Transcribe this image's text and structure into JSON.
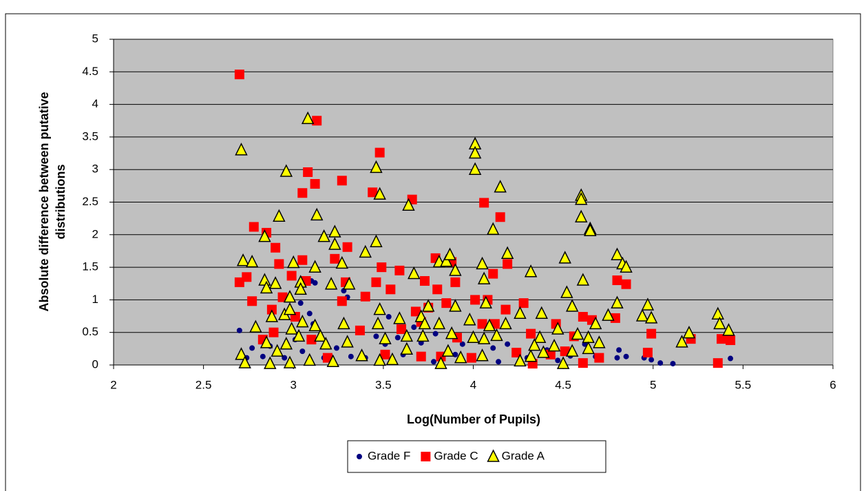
{
  "chart_data": {
    "type": "scatter",
    "xlabel": "Log(Number of Pupils)",
    "ylabel": [
      "Absolute difference between putative",
      "distributions"
    ],
    "xlim": [
      2,
      6
    ],
    "xticks": [
      2,
      2.5,
      3,
      3.5,
      4,
      4.5,
      5,
      5.5,
      6
    ],
    "ylim": [
      0,
      5
    ],
    "yticks": [
      0,
      0.5,
      1,
      1.5,
      2,
      2.5,
      3,
      3.5,
      4,
      4.5,
      5
    ],
    "grid": true,
    "legend": "bottom",
    "background": "#c0c0c0",
    "series": [
      {
        "name": "Grade F",
        "color": "#000080",
        "marker": "circle",
        "x": [
          2.7,
          2.74,
          2.77,
          2.83,
          2.87,
          2.95,
          3.04,
          3.09,
          3.1,
          3.12,
          3.11,
          3.01,
          3.05,
          3.17,
          3.24,
          3.28,
          3.3,
          3.32,
          3.4,
          3.46,
          3.51,
          3.53,
          3.58,
          3.61,
          3.67,
          3.71,
          3.78,
          3.79,
          3.9,
          3.94,
          4.05,
          4.11,
          4.14,
          4.19,
          4.3,
          4.41,
          4.47,
          4.54,
          4.62,
          4.68,
          4.8,
          4.81,
          4.85,
          4.95,
          4.99,
          5.04,
          5.11,
          5.43
        ],
        "values": [
          0.53,
          0.11,
          0.26,
          0.13,
          0.29,
          0.11,
          0.95,
          0.79,
          1.29,
          1.26,
          0.63,
          0.39,
          0.21,
          0.11,
          0.26,
          1.14,
          1.04,
          0.13,
          0.11,
          0.44,
          0.32,
          0.74,
          0.42,
          0.16,
          0.58,
          0.34,
          0.05,
          0.48,
          0.16,
          0.32,
          0.11,
          0.26,
          0.05,
          0.32,
          0.11,
          0.23,
          0.07,
          0.14,
          0.32,
          0.13,
          0.11,
          0.23,
          0.13,
          0.11,
          0.08,
          0.03,
          0.02,
          0.1
        ]
      },
      {
        "name": "Grade C",
        "color": "#ff0000",
        "marker": "square",
        "x": [
          2.7,
          3.13,
          3.08,
          3.05,
          3.12,
          3.27,
          3.48,
          3.44,
          3.66,
          4.06,
          4.15,
          2.78,
          2.85,
          2.9,
          3.3,
          3.23,
          2.92,
          3.05,
          3.49,
          3.59,
          3.79,
          3.88,
          4.19,
          4.11,
          2.7,
          2.74,
          2.99,
          3.07,
          3.29,
          3.46,
          3.54,
          3.73,
          3.8,
          3.9,
          4.01,
          4.08,
          2.77,
          2.94,
          3.4,
          3.27,
          2.88,
          3.01,
          3.68,
          3.75,
          3.85,
          4.18,
          4.28,
          4.61,
          4.8,
          4.85,
          4.79,
          2.83,
          2.89,
          3.1,
          3.37,
          3.6,
          3.71,
          3.91,
          4.05,
          4.12,
          4.32,
          4.46,
          4.56,
          4.66,
          4.99,
          4.97,
          5.21,
          5.36,
          5.38,
          5.43,
          3.19,
          3.51,
          3.82,
          3.99,
          4.24,
          4.33,
          4.43,
          4.61,
          4.7,
          4.51,
          3.71
        ],
        "values": [
          4.46,
          3.75,
          2.96,
          2.64,
          2.78,
          2.83,
          3.26,
          2.65,
          2.54,
          2.49,
          2.27,
          2.12,
          2.03,
          1.8,
          1.81,
          1.63,
          1.55,
          1.61,
          1.5,
          1.45,
          1.64,
          1.58,
          1.55,
          1.4,
          1.27,
          1.35,
          1.37,
          1.29,
          1.27,
          1.27,
          1.16,
          1.29,
          1.16,
          1.27,
          1.0,
          1.0,
          0.98,
          1.04,
          1.05,
          0.98,
          0.85,
          0.74,
          0.82,
          0.88,
          0.95,
          0.85,
          0.95,
          0.74,
          1.3,
          1.24,
          0.72,
          0.39,
          0.5,
          0.39,
          0.53,
          0.55,
          0.66,
          0.42,
          0.63,
          0.63,
          0.48,
          0.63,
          0.44,
          0.69,
          0.48,
          0.19,
          0.4,
          0.03,
          0.4,
          0.38,
          0.11,
          0.16,
          0.13,
          0.11,
          0.19,
          0.02,
          0.16,
          0.03,
          0.11,
          0.21,
          0.13
        ]
      },
      {
        "name": "Grade A",
        "color": "#ffff00",
        "marker": "triangle",
        "x": [
          2.71,
          3.08,
          2.96,
          3.46,
          3.48,
          4.01,
          4.01,
          4.01,
          4.15,
          3.64,
          4.6,
          4.6,
          4.6,
          4.65,
          4.65,
          4.11,
          4.19,
          2.92,
          3.13,
          3.17,
          2.84,
          3.23,
          3.23,
          3.46,
          3.4,
          3.27,
          2.72,
          2.77,
          3.0,
          3.12,
          3.81,
          3.85,
          3.87,
          3.9,
          3.67,
          4.05,
          4.06,
          4.51,
          4.8,
          4.83,
          4.85,
          4.32,
          4.61,
          2.84,
          2.85,
          2.9,
          3.04,
          3.04,
          3.31,
          3.21,
          2.98,
          4.52,
          4.07,
          4.8,
          4.97,
          3.48,
          3.75,
          3.9,
          4.55,
          4.38,
          5.36,
          5.37,
          5.42,
          5.2,
          5.16,
          4.94,
          4.99,
          4.75,
          4.64,
          4.68,
          2.88,
          2.95,
          2.98,
          3.05,
          3.12,
          3.28,
          3.47,
          3.59,
          3.71,
          3.73,
          3.81,
          3.98,
          4.09,
          4.18,
          4.26,
          4.47,
          2.79,
          2.99,
          3.03,
          3.15,
          3.51,
          3.63,
          3.72,
          3.88,
          4.0,
          4.06,
          4.13,
          4.37,
          4.58,
          2.71,
          2.73,
          2.87,
          2.91,
          2.98,
          3.09,
          3.22,
          3.38,
          3.48,
          3.55,
          3.63,
          3.82,
          3.86,
          3.93,
          4.05,
          4.26,
          4.32,
          4.39,
          4.45,
          4.5,
          4.55,
          4.64,
          4.7,
          3.18,
          3.3,
          2.85,
          2.96,
          4.34
        ],
        "values": [
          3.3,
          3.78,
          2.97,
          3.03,
          2.62,
          3.39,
          3.25,
          3.0,
          2.73,
          2.45,
          2.6,
          2.54,
          2.27,
          2.09,
          2.06,
          2.08,
          1.71,
          2.28,
          2.3,
          1.97,
          1.97,
          2.04,
          1.85,
          1.89,
          1.73,
          1.56,
          1.6,
          1.58,
          1.57,
          1.5,
          1.58,
          1.59,
          1.69,
          1.45,
          1.4,
          1.55,
          1.32,
          1.64,
          1.69,
          1.55,
          1.5,
          1.43,
          1.3,
          1.3,
          1.18,
          1.25,
          1.27,
          1.16,
          1.24,
          1.24,
          1.04,
          1.11,
          0.95,
          0.95,
          0.92,
          0.85,
          0.9,
          0.9,
          0.9,
          0.79,
          0.78,
          0.63,
          0.53,
          0.49,
          0.35,
          0.75,
          0.72,
          0.76,
          0.42,
          0.63,
          0.74,
          0.77,
          0.85,
          0.66,
          0.6,
          0.63,
          0.63,
          0.71,
          0.74,
          0.63,
          0.63,
          0.69,
          0.6,
          0.63,
          0.79,
          0.55,
          0.58,
          0.55,
          0.44,
          0.44,
          0.4,
          0.44,
          0.44,
          0.48,
          0.42,
          0.4,
          0.45,
          0.42,
          0.47,
          0.16,
          0.03,
          0.02,
          0.21,
          0.03,
          0.07,
          0.05,
          0.14,
          0.07,
          0.08,
          0.24,
          0.02,
          0.21,
          0.11,
          0.14,
          0.06,
          0.13,
          0.19,
          0.29,
          0.02,
          0.21,
          0.25,
          0.34,
          0.32,
          0.35,
          0.34,
          0.32,
          0.3
        ]
      }
    ]
  }
}
